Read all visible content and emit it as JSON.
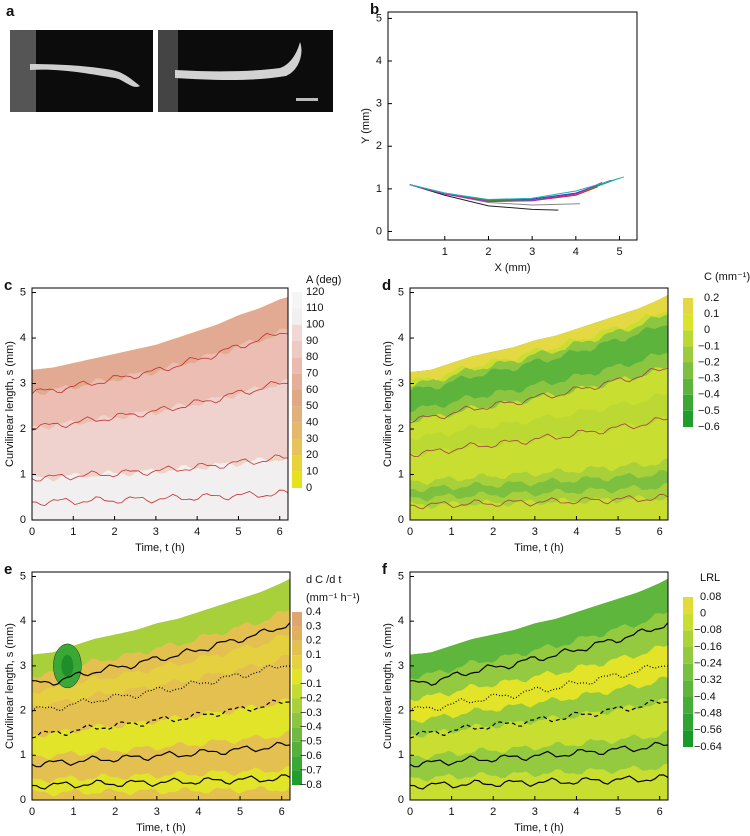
{
  "images": {
    "label": "a"
  },
  "chart_data": [
    {
      "type": "line",
      "label": "b",
      "xlabel": "X (mm)",
      "ylabel": "Y (mm)",
      "xlim": [
        -0.3,
        5.4
      ],
      "xticks": [
        1,
        2,
        3,
        4,
        5
      ],
      "ylim": [
        -0.2,
        5.15
      ],
      "yticks": [
        0,
        1,
        2,
        3,
        4,
        5
      ],
      "series": [
        {
          "color": "#222222",
          "x": [
            0.2,
            1,
            2,
            3,
            3.6
          ],
          "values": [
            1.1,
            0.85,
            0.6,
            0.52,
            0.5
          ]
        },
        {
          "color": "#888888",
          "x": [
            0.2,
            1,
            2,
            3,
            4.1
          ],
          "values": [
            1.1,
            0.88,
            0.68,
            0.62,
            0.65
          ]
        },
        {
          "color": "#d62020",
          "x": [
            0.2,
            1,
            2,
            3,
            4,
            4.5
          ],
          "values": [
            1.1,
            0.88,
            0.72,
            0.72,
            0.85,
            1.05
          ]
        },
        {
          "color": "#2030d0",
          "x": [
            0.2,
            1,
            2,
            3,
            4,
            4.8
          ],
          "values": [
            1.1,
            0.9,
            0.74,
            0.76,
            0.9,
            1.2
          ]
        },
        {
          "color": "#20a040",
          "x": [
            0.2,
            1,
            2,
            3,
            4,
            5
          ],
          "values": [
            1.1,
            0.9,
            0.73,
            0.74,
            0.88,
            1.25
          ]
        },
        {
          "color": "#c020c0",
          "x": [
            0.2,
            1,
            2,
            3,
            4,
            4.6
          ],
          "values": [
            1.1,
            0.88,
            0.7,
            0.72,
            0.88,
            1.15
          ]
        },
        {
          "color": "#20b0c0",
          "x": [
            0.2,
            1,
            2,
            3,
            4,
            5.1
          ],
          "values": [
            1.1,
            0.9,
            0.75,
            0.78,
            0.95,
            1.28
          ]
        }
      ]
    },
    {
      "type": "contour",
      "label": "c",
      "xlabel": "Time, t (h)",
      "ylabel": "Curvilinear length, s (mm)",
      "xlim": [
        0,
        6.2
      ],
      "xticks": [
        0,
        1,
        2,
        3,
        4,
        5,
        6
      ],
      "ylim": [
        0,
        5.1
      ],
      "yticks": [
        0,
        1,
        2,
        3,
        4,
        5
      ],
      "x": [
        0,
        0.5,
        1,
        1.5,
        2,
        2.5,
        3,
        3.5,
        4,
        4.5,
        5,
        5.5,
        6,
        6.2
      ],
      "values": [
        3.3,
        3.35,
        3.45,
        3.55,
        3.65,
        3.75,
        3.85,
        4.0,
        4.15,
        4.3,
        4.5,
        4.65,
        4.85,
        4.9
      ],
      "colorbar": {
        "title": [
          "A (deg)"
        ],
        "ticks": [
          0,
          10,
          20,
          30,
          40,
          50,
          60,
          70,
          80,
          90,
          100,
          110,
          120
        ],
        "colors": [
          "#e6e21e",
          "#e8d33a",
          "#e6c45a",
          "#e4b96c",
          "#e2b07a",
          "#e0a885",
          "#e4b09a",
          "#eabcb0",
          "#eecac4",
          "#f1d8d6",
          "#f1efef",
          "#f5f5f5"
        ]
      }
    },
    {
      "type": "contour",
      "label": "d",
      "xlabel": "Time, t (h)",
      "ylabel": "Curvilinear length, s (mm)",
      "xlim": [
        0,
        6.2
      ],
      "xticks": [
        0,
        1,
        2,
        3,
        4,
        5,
        6
      ],
      "ylim": [
        0,
        5.1
      ],
      "yticks": [
        0,
        1,
        2,
        3,
        4,
        5
      ],
      "x": [
        0,
        0.5,
        1,
        1.5,
        2,
        2.5,
        3,
        3.5,
        4,
        4.5,
        5,
        5.5,
        6,
        6.2
      ],
      "values": [
        3.25,
        3.3,
        3.45,
        3.6,
        3.7,
        3.8,
        3.95,
        4.05,
        4.2,
        4.35,
        4.5,
        4.65,
        4.85,
        4.95
      ],
      "colorbar": {
        "title": [
          "C (mm⁻¹)"
        ],
        "ticks": [
          {
            "value": -0.6,
            "label": "−0.6"
          },
          {
            "value": -0.5,
            "label": "−0.5"
          },
          {
            "value": -0.4,
            "label": "−0.4"
          },
          {
            "value": -0.3,
            "label": "−0.3"
          },
          {
            "value": -0.2,
            "label": "−0.2"
          },
          {
            "value": -0.1,
            "label": "−0.1"
          },
          0,
          0.1,
          0.2
        ],
        "colors": [
          "#1f9e2c",
          "#3aa835",
          "#5cb43c",
          "#7dc040",
          "#9ccc3c",
          "#bcd832",
          "#d9e42a",
          "#e4d843"
        ]
      }
    },
    {
      "type": "contour",
      "label": "e",
      "xlabel": "Time, t (h)",
      "ylabel": "Curvilinear length, s (mm)",
      "xlim": [
        0,
        6.2
      ],
      "xticks": [
        0,
        1,
        2,
        3,
        4,
        5,
        6
      ],
      "ylim": [
        0,
        5.1
      ],
      "yticks": [
        0,
        1,
        2,
        3,
        4,
        5
      ],
      "x": [
        0,
        0.5,
        1,
        1.5,
        2,
        2.5,
        3,
        3.5,
        4,
        4.5,
        5,
        5.5,
        6,
        6.2
      ],
      "values": [
        3.25,
        3.3,
        3.45,
        3.6,
        3.7,
        3.8,
        3.95,
        4.05,
        4.2,
        4.35,
        4.5,
        4.65,
        4.85,
        4.95
      ],
      "colorbar": {
        "title": [
          "d C /d t",
          "(mm⁻¹ h⁻¹)"
        ],
        "ticks": [
          {
            "value": -0.8,
            "label": "−0.8"
          },
          {
            "value": -0.7,
            "label": "−0.7"
          },
          {
            "value": -0.6,
            "label": "−0.6"
          },
          {
            "value": -0.5,
            "label": "−0.5"
          },
          {
            "value": -0.4,
            "label": "−0.4"
          },
          {
            "value": -0.3,
            "label": "−0.3"
          },
          {
            "value": -0.2,
            "label": "−0.2"
          },
          {
            "value": -0.1,
            "label": "−0.1"
          },
          0,
          0.1,
          0.2,
          0.3,
          0.4
        ],
        "colors": [
          "#1f9e2c",
          "#3aa835",
          "#55b13b",
          "#70bb3f",
          "#8cc640",
          "#a8d03a",
          "#c4db30",
          "#e2e42a",
          "#e5d040",
          "#e3c050",
          "#e0b060",
          "#dea572"
        ]
      }
    },
    {
      "type": "contour",
      "label": "f",
      "xlabel": "Time, t (h)",
      "ylabel": "Curvilinear length, s (mm)",
      "xlim": [
        0,
        6.2
      ],
      "xticks": [
        0,
        1,
        2,
        3,
        4,
        5,
        6
      ],
      "ylim": [
        0,
        5.1
      ],
      "yticks": [
        0,
        1,
        2,
        3,
        4,
        5
      ],
      "x": [
        0,
        0.5,
        1,
        1.5,
        2,
        2.5,
        3,
        3.5,
        4,
        4.5,
        5,
        5.5,
        6,
        6.2
      ],
      "values": [
        3.25,
        3.3,
        3.45,
        3.6,
        3.7,
        3.8,
        3.95,
        4.05,
        4.2,
        4.35,
        4.5,
        4.65,
        4.85,
        4.95
      ],
      "colorbar": {
        "title": [
          "LRL"
        ],
        "ticks": [
          {
            "value": -0.64,
            "label": "−0.64"
          },
          {
            "value": -0.56,
            "label": "−0.56"
          },
          {
            "value": -0.48,
            "label": "−0.48"
          },
          {
            "value": -0.4,
            "label": "−0.4"
          },
          {
            "value": -0.32,
            "label": "−0.32"
          },
          {
            "value": -0.24,
            "label": "−0.24"
          },
          {
            "value": -0.16,
            "label": "−0.16"
          },
          {
            "value": -0.08,
            "label": "−0.08"
          },
          0,
          0.08
        ],
        "colors": [
          "#1a9a2a",
          "#2ea432",
          "#45ad38",
          "#5eb73c",
          "#78c040",
          "#93ca40",
          "#acd43a",
          "#c8de30",
          "#e3dc38"
        ]
      }
    }
  ]
}
